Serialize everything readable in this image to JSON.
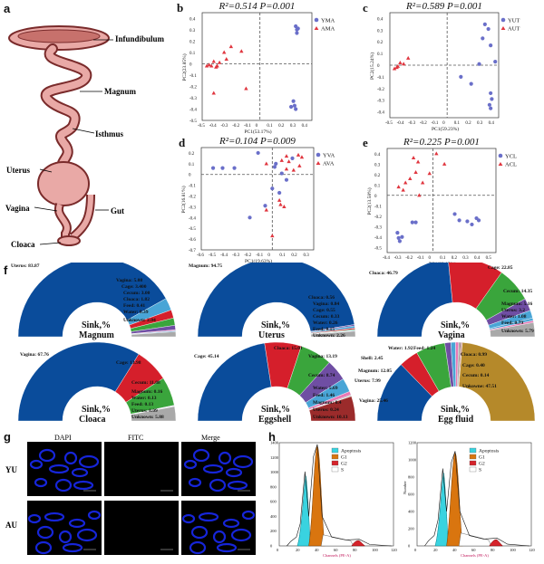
{
  "panel_a": {
    "letter": "a",
    "labels": {
      "infundibulum": "Infundibulum",
      "magnum": "Magnum",
      "isthmus": "Isthmus",
      "uterus": "Uterus",
      "vagina": "Vagina",
      "gut": "Gut",
      "cloaca": "Cloaca"
    }
  },
  "colors": {
    "series_a": "#6a6fc9",
    "series_b": "#e0363f",
    "oviduct_fill": "#e9a9a6",
    "oviduct_stroke": "#7a2b2b",
    "dapi": "#1a2cff"
  },
  "pcoa": [
    {
      "letter": "b",
      "title_stat": "R²=0.514 P=0.001",
      "legend": [
        "YMA",
        "AMA"
      ],
      "xlabel": "PC1(53.17%)",
      "ylabel": "PC2(23.85%)",
      "xticks": [
        -0.5,
        -0.4,
        -0.3,
        -0.2,
        -0.1,
        0,
        0.1,
        0.2,
        0.3,
        0.4
      ],
      "yticks": [
        0.4,
        0.3,
        0.2,
        0.1,
        0,
        -0.1,
        -0.2,
        -0.3,
        -0.4,
        -0.5
      ],
      "xlim": [
        -0.5,
        0.45
      ],
      "ylim": [
        -0.5,
        0.45
      ],
      "points_a": [
        [
          0.31,
          0.33
        ],
        [
          0.32,
          0.3
        ],
        [
          0.32,
          0.27
        ],
        [
          0.33,
          0.31
        ],
        [
          0.29,
          -0.33
        ],
        [
          0.3,
          -0.37
        ],
        [
          0.27,
          -0.38
        ],
        [
          0.31,
          -0.4
        ]
      ],
      "points_b": [
        [
          -0.46,
          -0.02
        ],
        [
          -0.44,
          -0.01
        ],
        [
          -0.42,
          -0.02
        ],
        [
          -0.4,
          0.02
        ],
        [
          -0.37,
          -0.02
        ],
        [
          -0.35,
          0.01
        ],
        [
          -0.29,
          0.04
        ],
        [
          -0.25,
          0.15
        ],
        [
          -0.16,
          0.11
        ],
        [
          -0.38,
          -0.03
        ],
        [
          -0.4,
          -0.26
        ],
        [
          -0.12,
          -0.22
        ],
        [
          -0.31,
          0.1
        ]
      ]
    },
    {
      "letter": "c",
      "title_stat": "R²=0.589 P=0.001",
      "legend": [
        "YUT",
        "AUT"
      ],
      "xlabel": "PC1(59.23%)",
      "ylabel": "PC2(15.24%)",
      "xticks": [
        -0.5,
        -0.4,
        -0.3,
        -0.2,
        -0.1,
        0,
        0.1,
        0.2,
        0.3,
        0.4
      ],
      "yticks": [
        0.4,
        0.3,
        0.2,
        0.1,
        0,
        -0.1,
        -0.2,
        -0.3,
        -0.4
      ],
      "xlim": [
        -0.5,
        0.45
      ],
      "ylim": [
        -0.45,
        0.45
      ],
      "points_a": [
        [
          0.33,
          0.35
        ],
        [
          0.36,
          0.31
        ],
        [
          0.31,
          0.23
        ],
        [
          0.38,
          0.17
        ],
        [
          0.42,
          0.03
        ],
        [
          0.28,
          0.01
        ],
        [
          0.12,
          -0.1
        ],
        [
          0.21,
          -0.16
        ],
        [
          0.38,
          -0.24
        ],
        [
          0.39,
          -0.29
        ],
        [
          0.37,
          -0.34
        ],
        [
          0.38,
          -0.37
        ]
      ],
      "points_b": [
        [
          -0.46,
          -0.03
        ],
        [
          -0.43,
          -0.01
        ],
        [
          -0.41,
          0.02
        ],
        [
          -0.38,
          0.01
        ],
        [
          -0.44,
          -0.02
        ],
        [
          -0.34,
          0.06
        ]
      ]
    },
    {
      "letter": "d",
      "title_stat": "R²=0.104 P=0.009",
      "legend": [
        "YVA",
        "AVA"
      ],
      "xlabel": "PC1(19.63%)",
      "ylabel": "PC2(16.81%)",
      "xticks": [
        -0.6,
        -0.5,
        -0.4,
        -0.3,
        -0.2,
        -0.1,
        0,
        0.1,
        0.2,
        0.3
      ],
      "yticks": [
        0.2,
        0.1,
        0,
        -0.1,
        -0.2,
        -0.3,
        -0.4,
        -0.5,
        -0.6,
        -0.7
      ],
      "xlim": [
        -0.6,
        0.35
      ],
      "ylim": [
        -0.7,
        0.25
      ],
      "points_a": [
        [
          -0.5,
          0.06
        ],
        [
          -0.42,
          0.06
        ],
        [
          -0.32,
          0.06
        ],
        [
          -0.12,
          0.2
        ],
        [
          0.0,
          -0.13
        ],
        [
          0.03,
          0.1
        ],
        [
          0.06,
          -0.17
        ],
        [
          0.08,
          0.01
        ],
        [
          0.12,
          -0.05
        ],
        [
          0.17,
          0.15
        ],
        [
          -0.19,
          -0.4
        ],
        [
          -0.06,
          -0.29
        ],
        [
          0.02,
          0.07
        ]
      ],
      "points_b": [
        [
          -0.05,
          -0.33
        ],
        [
          0.0,
          -0.57
        ],
        [
          0.06,
          -0.24
        ],
        [
          0.07,
          -0.28
        ],
        [
          0.1,
          -0.3
        ],
        [
          0.12,
          0.05
        ],
        [
          0.14,
          0.12
        ],
        [
          0.18,
          0.04
        ],
        [
          0.22,
          0.18
        ],
        [
          0.23,
          0.08
        ],
        [
          0.25,
          0.16
        ],
        [
          0.12,
          0.17
        ],
        [
          -0.05,
          0.1
        ],
        [
          0.08,
          0.13
        ]
      ]
    },
    {
      "letter": "e",
      "title_stat": "R²=0.225 P=0.001",
      "legend": [
        "YCL",
        "ACL"
      ],
      "xlabel": "PC1(23.15%)",
      "ylabel": "PC2(13.58%)",
      "xticks": [
        -0.4,
        -0.3,
        -0.2,
        -0.1,
        0,
        0.1,
        0.2,
        0.3,
        0.4,
        0.5
      ],
      "yticks": [
        0.4,
        0.3,
        0.2,
        0.1,
        0,
        -0.1,
        -0.2,
        -0.3,
        -0.4,
        -0.5
      ],
      "xlim": [
        -0.4,
        0.55
      ],
      "ylim": [
        -0.55,
        0.45
      ],
      "points_a": [
        [
          -0.31,
          -0.36
        ],
        [
          -0.3,
          -0.41
        ],
        [
          -0.29,
          -0.44
        ],
        [
          -0.27,
          -0.4
        ],
        [
          -0.18,
          -0.26
        ],
        [
          -0.15,
          -0.26
        ],
        [
          0.19,
          -0.18
        ],
        [
          0.23,
          -0.24
        ],
        [
          0.3,
          -0.25
        ],
        [
          0.34,
          -0.28
        ],
        [
          0.38,
          -0.22
        ],
        [
          0.4,
          -0.24
        ]
      ],
      "points_b": [
        [
          -0.26,
          0.05
        ],
        [
          -0.2,
          0.16
        ],
        [
          -0.17,
          0.36
        ],
        [
          -0.13,
          0.32
        ],
        [
          -0.12,
          0.0
        ],
        [
          -0.09,
          0.12
        ],
        [
          -0.03,
          0.21
        ],
        [
          0.03,
          0.4
        ],
        [
          -0.3,
          0.08
        ],
        [
          -0.24,
          0.12
        ],
        [
          -0.15,
          0.22
        ],
        [
          0.1,
          0.3
        ]
      ]
    }
  ],
  "sink_colors": [
    "#0a4c9b",
    "#d51f2b",
    "#3aa53c",
    "#6f4ea3",
    "#49a5d6",
    "#e879b5",
    "#a9a9a9",
    "#9b2b2b",
    "#b5892a"
  ],
  "sinks": [
    {
      "caption": "Sink,%",
      "target": "Magnum",
      "items": [
        {
          "label": "Uterus",
          "value": 83.87,
          "ci": 0
        },
        {
          "label": "Vagina",
          "value": 5.08,
          "ci": 4
        },
        {
          "label": "Cage",
          "value": 3.4,
          "ci": 1
        },
        {
          "label": "Cecum",
          "value": 3.0,
          "ci": 2
        },
        {
          "label": "Cloaca",
          "value": 1.82,
          "ci": 3
        },
        {
          "label": "Feed",
          "value": 0.41,
          "ci": 5
        },
        {
          "label": "Water",
          "value": 0.39,
          "ci": 4
        },
        {
          "label": "Unknown",
          "value": 2.04,
          "ci": 6
        }
      ],
      "texts": [
        "Uterus: 83.87",
        "Vagina: 5.08",
        "Cage: 3.400",
        "Cecum: 3.00",
        "Cloaca: 1.82",
        "Feed: 0.41",
        "Water: 0.39",
        "Unknown: 2.04"
      ]
    },
    {
      "caption": "Sink,%",
      "target": "Uterus",
      "items": [
        {
          "label": "Magnum",
          "value": 94.75,
          "ci": 0
        },
        {
          "label": "Cloaca",
          "value": 0.56,
          "ci": 3
        },
        {
          "label": "Vagina",
          "value": 0.84,
          "ci": 4
        },
        {
          "label": "Cage",
          "value": 0.55,
          "ci": 1
        },
        {
          "label": "Cecum",
          "value": 0.33,
          "ci": 2
        },
        {
          "label": "Water",
          "value": 0.26,
          "ci": 4
        },
        {
          "label": "Feed",
          "value": 0.15,
          "ci": 5
        },
        {
          "label": "Unknown",
          "value": 2.26,
          "ci": 6
        }
      ],
      "texts": [
        "Magnum: 94.75",
        "Cloaca: 0.56",
        "Vagina: 0.84",
        "Cage: 0.55",
        "Cecum: 0.33",
        "Water: 0.26",
        "Feed: 0.15",
        "Unknown: 2.26"
      ]
    },
    {
      "caption": "Sink,%",
      "target": "Vagina",
      "items": [
        {
          "label": "Cloaca",
          "value": 46.79,
          "ci": 0
        },
        {
          "label": "Cage",
          "value": 22.85,
          "ci": 1
        },
        {
          "label": "Cecum",
          "value": 14.35,
          "ci": 2
        },
        {
          "label": "Magnum",
          "value": 5.16,
          "ci": 3
        },
        {
          "label": "Uterus",
          "value": 3.2,
          "ci": 4
        },
        {
          "label": "Water",
          "value": 1.08,
          "ci": 4
        },
        {
          "label": "Feed",
          "value": 0.79,
          "ci": 5
        },
        {
          "label": "Unknown",
          "value": 5.79,
          "ci": 6
        }
      ],
      "texts": [
        "Cloaca: 46.79",
        "Cage: 22.85",
        "Cecum: 14.35",
        "Magnum: 5.16",
        "Uterus: 3.2",
        "Water: 1.08",
        "Feed: 0.79",
        "Unknown: 5.79"
      ]
    },
    {
      "caption": "Sink,%",
      "target": "Cloaca",
      "items": [
        {
          "label": "Vagina",
          "value": 67.76,
          "ci": 0
        },
        {
          "label": "Cage",
          "value": 13.98,
          "ci": 1
        },
        {
          "label": "Cecum",
          "value": 11.88,
          "ci": 2
        },
        {
          "label": "Magnum",
          "value": 0.16,
          "ci": 3
        },
        {
          "label": "Water",
          "value": 0.13,
          "ci": 4
        },
        {
          "label": "Feed",
          "value": 0.13,
          "ci": 5
        },
        {
          "label": "Uterus",
          "value": 0.09,
          "ci": 4
        },
        {
          "label": "Unknown",
          "value": 5.88,
          "ci": 6
        }
      ],
      "texts": [
        "Vagina: 67.76",
        "Cage: 13.98",
        "Cecum: 11.88",
        "Magnum: 0.16",
        "Water: 0.13",
        "Feed: 0.13",
        "Uterus: 0.09",
        "Unknown: 5.88"
      ]
    },
    {
      "caption": "Sink,%",
      "target": "Eggshell",
      "items": [
        {
          "label": "Cage",
          "value": 45.14,
          "ci": 0
        },
        {
          "label": "Cloaca",
          "value": 15.01,
          "ci": 1
        },
        {
          "label": "Vagina",
          "value": 13.19,
          "ci": 2
        },
        {
          "label": "Cecum",
          "value": 8.74,
          "ci": 3
        },
        {
          "label": "Water",
          "value": 5.69,
          "ci": 4
        },
        {
          "label": "Feed",
          "value": 1.46,
          "ci": 5
        },
        {
          "label": "Magnum",
          "value": 0.4,
          "ci": 6
        },
        {
          "label": "Uterus",
          "value": 0.24,
          "ci": 6
        },
        {
          "label": "Unknown",
          "value": 10.13,
          "ci": 7
        }
      ],
      "texts": [
        "Cage: 45.14",
        "Cloaca: 15.01",
        "Vagina: 13.19",
        "Cecum: 8.74",
        "Water: 5.69",
        "Feed: 1.46",
        "Magnum: 0.4",
        "Uterus: 0.24",
        "Unknown: 10.13"
      ]
    },
    {
      "caption": "Sink,%",
      "target": "Egg fluid",
      "items": [
        {
          "label": "Vagina",
          "value": 25.46,
          "ci": 0
        },
        {
          "label": "Uterus",
          "value": 7.99,
          "ci": 1
        },
        {
          "label": "Magnum",
          "value": 12.05,
          "ci": 2
        },
        {
          "label": "Shell",
          "value": 2.45,
          "ci": 3
        },
        {
          "label": "Water",
          "value": 1.92,
          "ci": 4
        },
        {
          "label": "Feed",
          "value": 1.24,
          "ci": 5
        },
        {
          "label": "Cloaca",
          "value": 0.99,
          "ci": 6
        },
        {
          "label": "Cage",
          "value": 0.4,
          "ci": 7
        },
        {
          "label": "Cecum",
          "value": 0.14,
          "ci": 6
        },
        {
          "label": "Unkowne",
          "value": 47.51,
          "ci": 8
        }
      ],
      "texts": [
        "Vagina: 25.46",
        "Uterus: 7.99",
        "Magnum: 12.05",
        "Shell: 2.45",
        "Water: 1.92",
        "Feed: 1.24",
        "Cloaca: 0.99",
        "Cage: 0.40",
        "Cecum: 0.14",
        "Unkowne: 47.51"
      ]
    }
  ],
  "panel_f": {
    "letter": "f"
  },
  "panel_g": {
    "letter": "g",
    "columns": [
      "DAPI",
      "FITC",
      "Merge"
    ],
    "rows": [
      "YU",
      "AU"
    ]
  },
  "panel_h": {
    "letter": "h",
    "legend": [
      "Apoptosis",
      "G1",
      "G2",
      "S"
    ],
    "legend_colors": [
      "#39d3e0",
      "#d9750f",
      "#d6232b",
      "#ffffff"
    ],
    "xlabel": "Channels (PE-A)",
    "ylabel": "Number",
    "xticks": [
      0,
      20,
      40,
      60,
      80,
      100,
      120
    ],
    "yticks_left": [
      0,
      200,
      400,
      600,
      800,
      1000,
      1200,
      1400
    ],
    "yticks_right": [
      0,
      200,
      400,
      600,
      800,
      1000,
      1200
    ]
  }
}
